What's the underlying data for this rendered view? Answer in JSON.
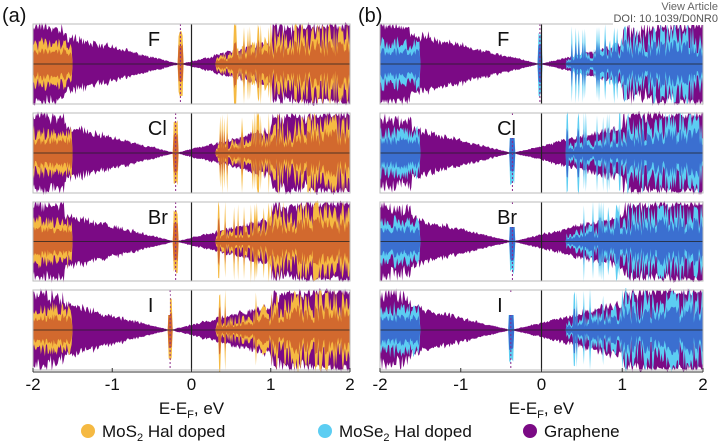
{
  "header": {
    "view_article": "View Article",
    "doi": "DOI: 10.1039/D0NR0"
  },
  "chart_data": [
    {
      "type": "area",
      "panel_label": "(a)",
      "xlabel": "E-E",
      "xlabel_sub": "F",
      "xlabel_unit": ", eV",
      "xlim": [
        -2,
        2
      ],
      "xticks": [
        "-2",
        "-1",
        "0",
        "1",
        "2"
      ],
      "rows": [
        {
          "label": "F",
          "fermi_shift": -0.14
        },
        {
          "label": "Cl",
          "fermi_shift": -0.2
        },
        {
          "label": "Br",
          "fermi_shift": -0.2
        },
        {
          "label": "I",
          "fermi_shift": -0.27
        }
      ],
      "series": [
        {
          "name": "MoS2 Hal doped",
          "color": "#f5b942",
          "fill_dark": "#d2692e"
        },
        {
          "name": "Graphene",
          "color": "#7b0a85"
        }
      ]
    },
    {
      "type": "area",
      "panel_label": "(b)",
      "xlabel": "E-E",
      "xlabel_sub": "F",
      "xlabel_unit": ", eV",
      "xlim": [
        -2,
        2
      ],
      "xticks": [
        "-2",
        "-1",
        "0",
        "1",
        "2"
      ],
      "rows": [
        {
          "label": "F",
          "fermi_shift": -0.02
        },
        {
          "label": "Cl",
          "fermi_shift": -0.36
        },
        {
          "label": "Br",
          "fermi_shift": -0.36
        },
        {
          "label": "I",
          "fermi_shift": -0.38
        }
      ],
      "series": [
        {
          "name": "MoSe2 Hal doped",
          "color": "#5ccdf2",
          "fill_dark": "#3b6fd0"
        },
        {
          "name": "Graphene",
          "color": "#7b0a85"
        }
      ]
    }
  ],
  "legend": [
    {
      "main": "MoS",
      "sub": "2",
      "rest": " Hal doped",
      "color": "#f5b942"
    },
    {
      "main": "MoSe",
      "sub": "2",
      "rest": " Hal doped",
      "color": "#5ccdf2"
    },
    {
      "main": "Graphene",
      "sub": "",
      "rest": "",
      "color": "#7b0a85"
    }
  ]
}
